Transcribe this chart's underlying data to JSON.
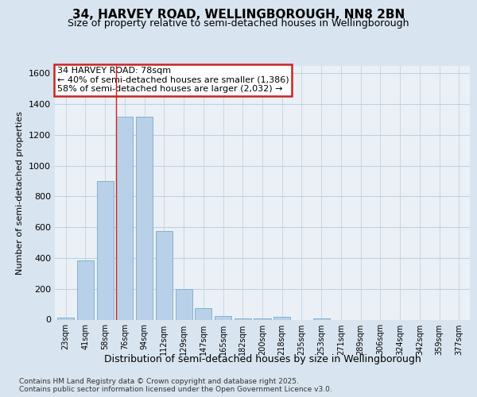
{
  "title": "34, HARVEY ROAD, WELLINGBOROUGH, NN8 2BN",
  "subtitle": "Size of property relative to semi-detached houses in Wellingborough",
  "xlabel": "Distribution of semi-detached houses by size in Wellingborough",
  "ylabel": "Number of semi-detached properties",
  "categories": [
    "23sqm",
    "41sqm",
    "58sqm",
    "76sqm",
    "94sqm",
    "112sqm",
    "129sqm",
    "147sqm",
    "165sqm",
    "182sqm",
    "200sqm",
    "218sqm",
    "235sqm",
    "253sqm",
    "271sqm",
    "289sqm",
    "306sqm",
    "324sqm",
    "342sqm",
    "359sqm",
    "377sqm"
  ],
  "values": [
    15,
    385,
    900,
    1320,
    1320,
    575,
    200,
    75,
    25,
    10,
    10,
    20,
    0,
    10,
    0,
    0,
    0,
    0,
    0,
    0,
    0
  ],
  "bar_color": "#b8d0e8",
  "bar_edge_color": "#7aaac8",
  "highlight_bar_index": 3,
  "highlight_line_color": "#cc2222",
  "annotation_title": "34 HARVEY ROAD: 78sqm",
  "annotation_line2": "← 40% of semi-detached houses are smaller (1,386)",
  "annotation_line3": "58% of semi-detached houses are larger (2,032) →",
  "annotation_facecolor": "#ffffff",
  "annotation_edgecolor": "#cc2222",
  "fig_facecolor": "#d8e4ef",
  "ax_facecolor": "#eaf0f6",
  "grid_color": "#bccedd",
  "ylim": [
    0,
    1650
  ],
  "yticks": [
    0,
    200,
    400,
    600,
    800,
    1000,
    1200,
    1400,
    1600
  ],
  "footer_line1": "Contains HM Land Registry data © Crown copyright and database right 2025.",
  "footer_line2": "Contains public sector information licensed under the Open Government Licence v3.0.",
  "title_fontsize": 11,
  "subtitle_fontsize": 9,
  "ylabel_fontsize": 8,
  "xlabel_fontsize": 9,
  "tick_fontsize": 8,
  "xtick_fontsize": 7,
  "footer_fontsize": 6.5,
  "ann_fontsize": 8
}
